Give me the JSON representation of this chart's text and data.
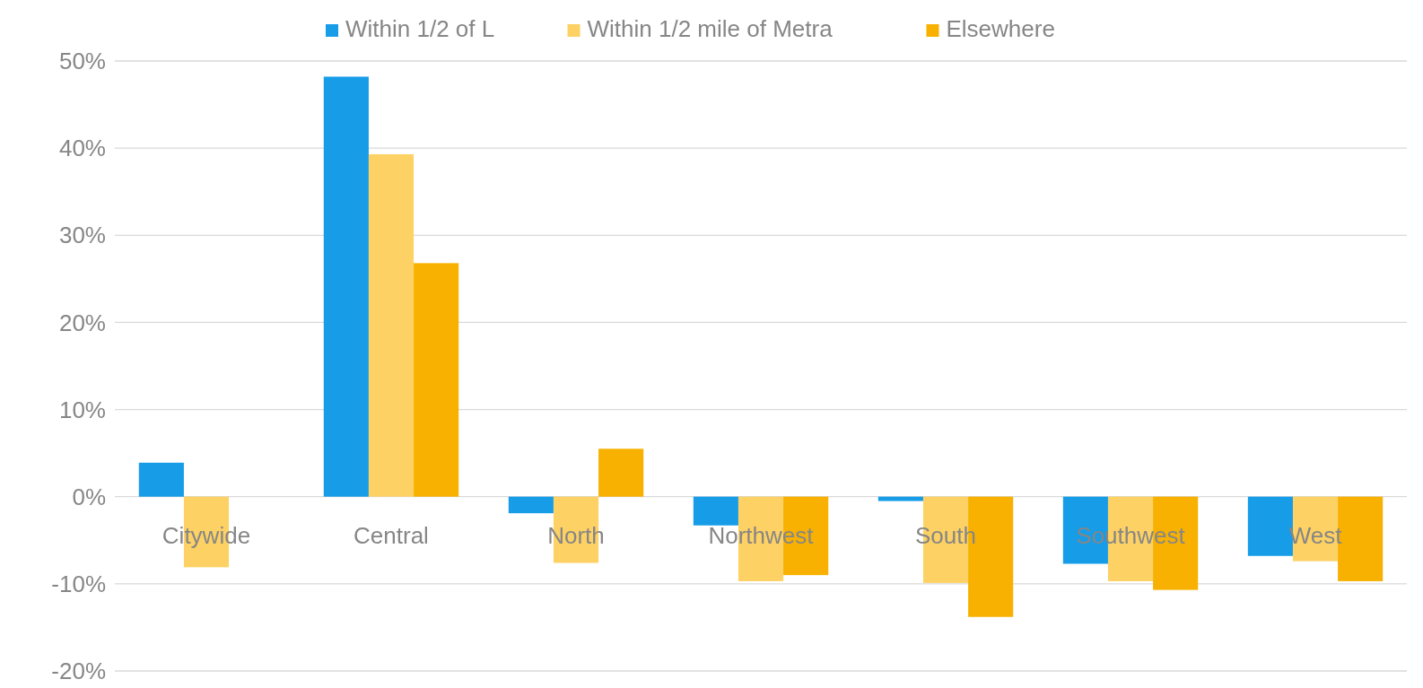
{
  "chart_data": {
    "type": "bar",
    "categories": [
      "Citywide",
      "Central",
      "North",
      "Northwest",
      "South",
      "Southwest",
      "West"
    ],
    "series": [
      {
        "name": "Within 1/2 of L",
        "color": "#179ce8",
        "values": [
          3.9,
          48.2,
          -1.9,
          -3.3,
          -0.5,
          -7.7,
          -6.8
        ]
      },
      {
        "name": "Within 1/2 mile of Metra",
        "color": "#fdd163",
        "values": [
          -8.1,
          39.3,
          -7.6,
          -9.7,
          -9.9,
          -9.7,
          -7.4
        ]
      },
      {
        "name": "Elsewhere",
        "color": "#f8b100",
        "values": [
          null,
          26.8,
          5.5,
          -9.0,
          -13.8,
          -10.7,
          -9.7
        ]
      }
    ],
    "ylim": [
      -20,
      50
    ],
    "yticks": [
      {
        "value": -20,
        "label": "-20%"
      },
      {
        "value": -10,
        "label": "-10%"
      },
      {
        "value": 0,
        "label": "0%"
      },
      {
        "value": 10,
        "label": "10%"
      },
      {
        "value": 20,
        "label": "20%"
      },
      {
        "value": 30,
        "label": "30%"
      },
      {
        "value": 40,
        "label": "40%"
      },
      {
        "value": 50,
        "label": "50%"
      }
    ],
    "grid": "y",
    "legend": "top"
  }
}
